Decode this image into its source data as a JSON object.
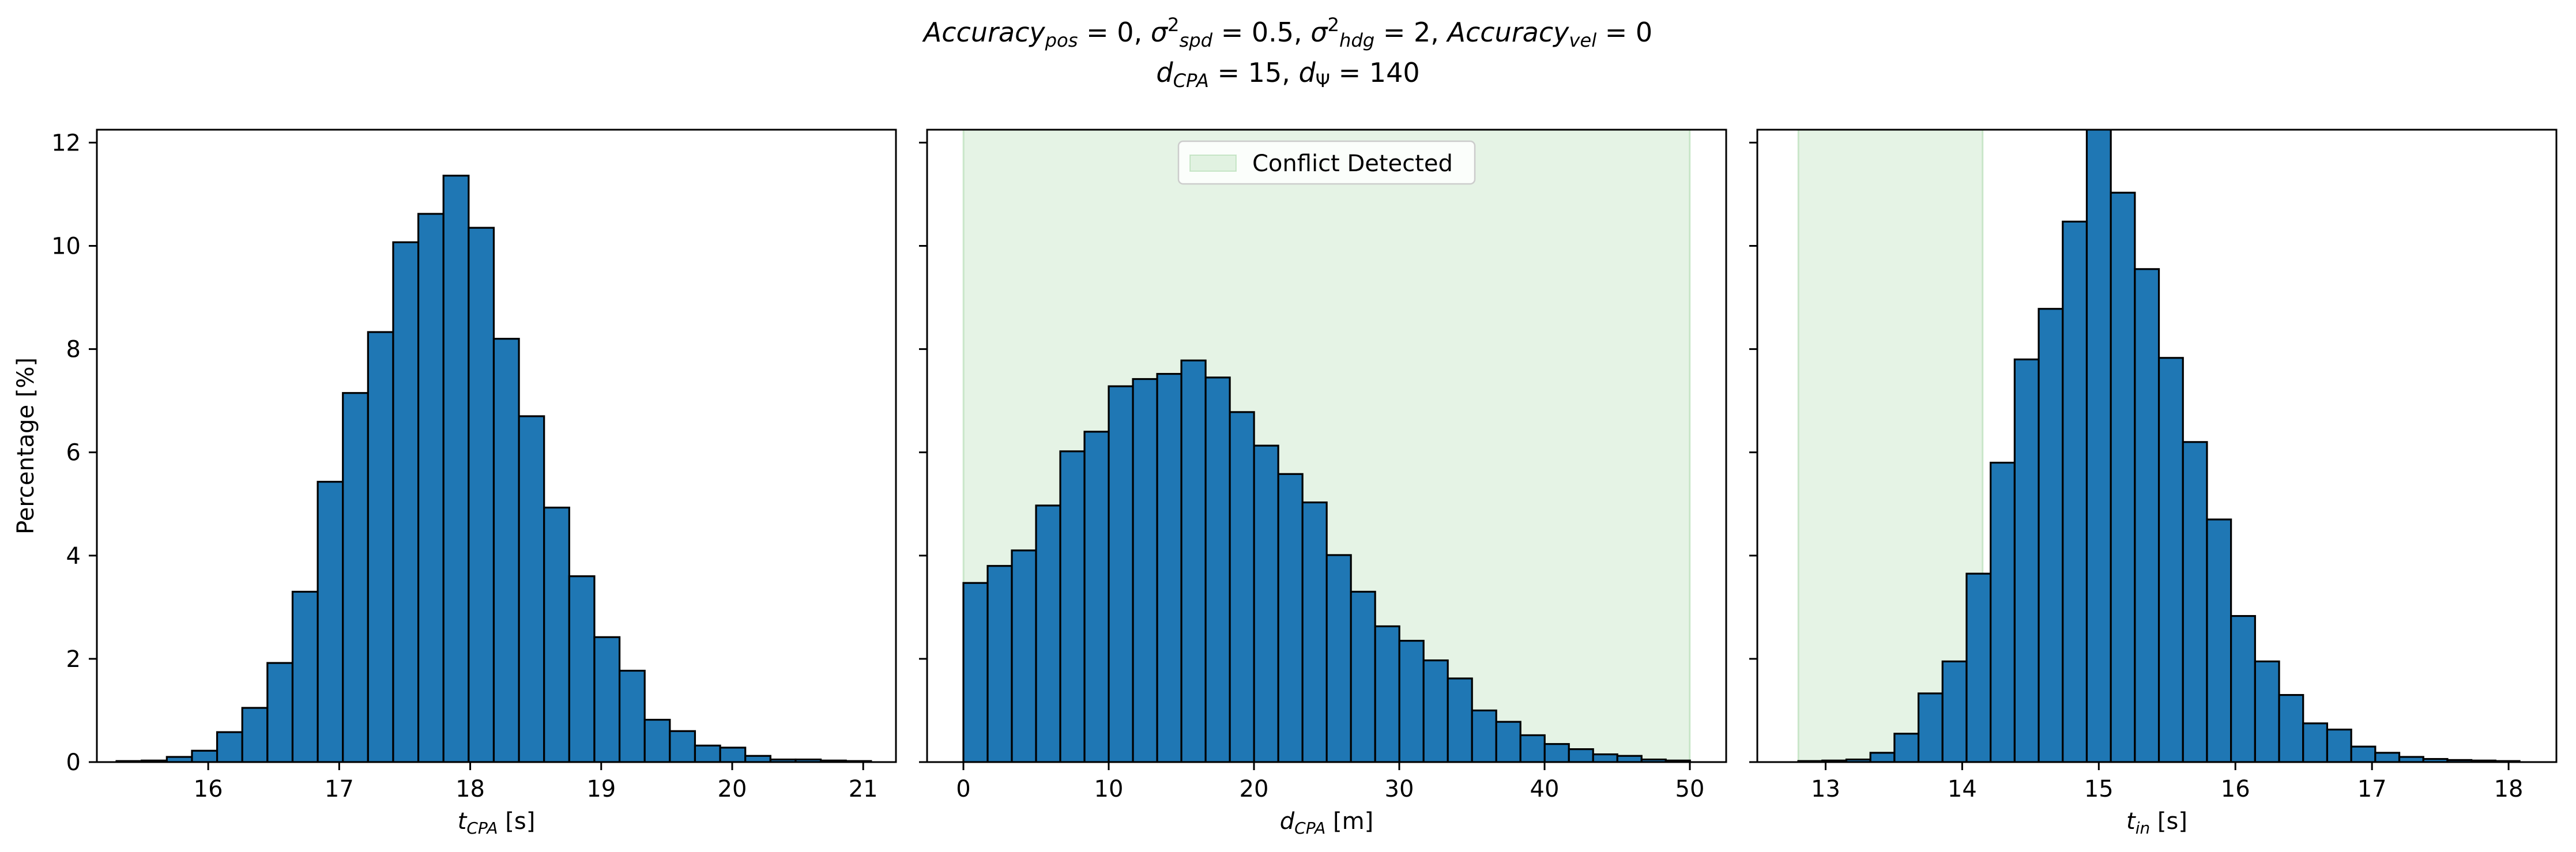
{
  "title": {
    "line1": [
      {
        "t": "Accuracy",
        "i": true
      },
      {
        "t": "pos",
        "i": true,
        "sub": true
      },
      {
        "t": " = 0, "
      },
      {
        "t": "σ",
        "i": true
      },
      {
        "t": "2",
        "sup": true
      },
      {
        "t": "spd",
        "i": true,
        "sub": true
      },
      {
        "t": " = 0.5, "
      },
      {
        "t": "σ",
        "i": true
      },
      {
        "t": "2",
        "sup": true
      },
      {
        "t": "hdg",
        "i": true,
        "sub": true
      },
      {
        "t": " = 2, "
      },
      {
        "t": "Accuracy",
        "i": true
      },
      {
        "t": "vel",
        "i": true,
        "sub": true
      },
      {
        "t": " = 0"
      }
    ],
    "line2": [
      {
        "t": "d",
        "i": true
      },
      {
        "t": "CPA",
        "i": true,
        "sub": true
      },
      {
        "t": " = 15, "
      },
      {
        "t": "d",
        "i": true
      },
      {
        "t": "Ψ",
        "sub": true
      },
      {
        "t": " = 140"
      }
    ]
  },
  "colors": {
    "bar_fill": "#1f77b4",
    "bar_edge": "#000000",
    "shade": "#2ca02c"
  },
  "chart_data": [
    {
      "type": "bar",
      "id": "tcpa",
      "xlabel": [
        {
          "t": "t",
          "i": true
        },
        {
          "t": "CPA",
          "i": true,
          "sub": true
        },
        {
          "t": " [s]"
        }
      ],
      "ylabel": "Percentage [%]",
      "xlim": [
        15.15,
        21.25
      ],
      "ylim": [
        0,
        12.25
      ],
      "xticks": [
        16,
        17,
        18,
        19,
        20,
        21
      ],
      "yticks": [
        0,
        2,
        4,
        6,
        8,
        10,
        12
      ],
      "bin_start": 15.3,
      "bin_width": 0.192,
      "values": [
        0.02,
        0.03,
        0.1,
        0.22,
        0.58,
        1.05,
        1.92,
        3.3,
        5.43,
        7.15,
        8.33,
        10.07,
        10.62,
        11.36,
        10.35,
        8.2,
        6.7,
        4.93,
        3.6,
        2.42,
        1.77,
        0.82,
        0.6,
        0.32,
        0.28,
        0.12,
        0.05,
        0.05,
        0.03,
        0.02
      ],
      "shade": null,
      "legend": null
    },
    {
      "type": "bar",
      "id": "dcpa",
      "xlabel": [
        {
          "t": "d",
          "i": true
        },
        {
          "t": "CPA",
          "i": true,
          "sub": true
        },
        {
          "t": " [m]"
        }
      ],
      "ylabel": "",
      "xlim": [
        -2.5,
        52.5
      ],
      "ylim": [
        0,
        12.25
      ],
      "xticks": [
        0,
        10,
        20,
        30,
        40,
        50
      ],
      "yticks": [
        0,
        2,
        4,
        6,
        8,
        10,
        12
      ],
      "bin_start": 0,
      "bin_width": 1.667,
      "values": [
        3.47,
        3.8,
        4.1,
        4.97,
        6.02,
        6.4,
        7.28,
        7.42,
        7.52,
        7.78,
        7.45,
        6.78,
        6.13,
        5.58,
        5.03,
        4.01,
        3.3,
        2.63,
        2.35,
        1.97,
        1.62,
        1.0,
        0.78,
        0.52,
        0.35,
        0.25,
        0.15,
        0.12,
        0.05,
        0.03
      ],
      "shade": [
        0,
        50
      ],
      "legend": {
        "label": "Conflict Detected",
        "position": "top-center"
      }
    },
    {
      "type": "bar",
      "id": "tin",
      "xlabel": [
        {
          "t": "t",
          "i": true
        },
        {
          "t": "in",
          "i": true,
          "sub": true
        },
        {
          "t": " [s]"
        }
      ],
      "ylabel": "",
      "xlim": [
        12.5,
        18.35
      ],
      "ylim": [
        0,
        12.25
      ],
      "xticks": [
        13,
        14,
        15,
        16,
        17,
        18
      ],
      "yticks": [
        0,
        2,
        4,
        6,
        8,
        10,
        12
      ],
      "bin_start": 12.8,
      "bin_width": 0.176,
      "values": [
        0.02,
        0.03,
        0.05,
        0.18,
        0.55,
        1.33,
        1.95,
        3.65,
        5.8,
        7.8,
        8.78,
        10.47,
        12.28,
        11.03,
        9.55,
        7.83,
        6.2,
        4.7,
        2.83,
        1.95,
        1.3,
        0.75,
        0.63,
        0.3,
        0.18,
        0.1,
        0.06,
        0.04,
        0.03,
        0.02
      ],
      "shade": [
        12.8,
        14.15
      ],
      "legend": null
    }
  ]
}
